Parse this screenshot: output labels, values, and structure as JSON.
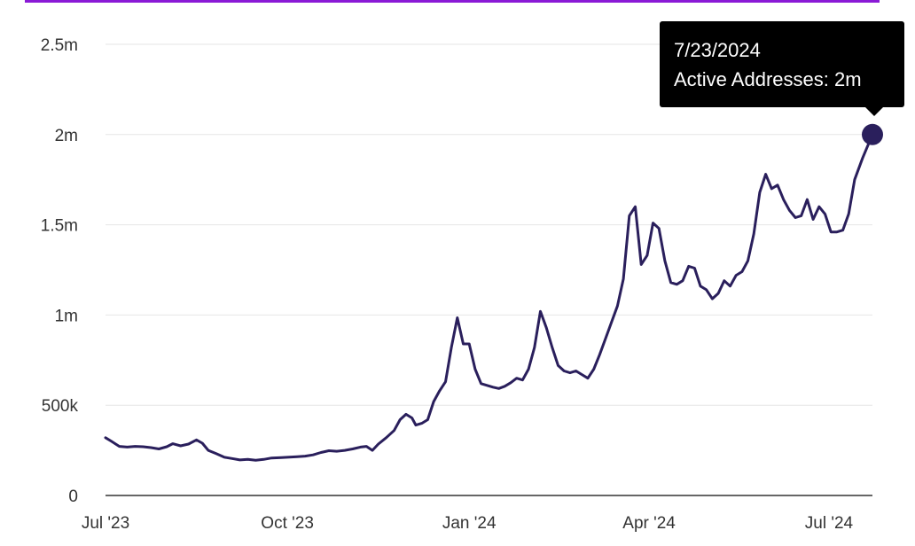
{
  "colors": {
    "accent_border": "#8a1ad6",
    "line": "#2a1f5c",
    "grid": "#e6e6e6",
    "axis": "#333333",
    "tooltip_bg": "#000000",
    "tooltip_text": "#ffffff"
  },
  "tooltip": {
    "date": "7/23/2024",
    "label": "Active Addresses",
    "value": "2m",
    "text": "Active Addresses: 2m"
  },
  "chart_data": {
    "type": "line",
    "title": "",
    "xlabel": "",
    "ylabel": "",
    "ylim": [
      0,
      2500000
    ],
    "grid": true,
    "legend": "none",
    "y_ticks": [
      {
        "value": 0,
        "label": "0"
      },
      {
        "value": 500000,
        "label": "500k"
      },
      {
        "value": 1000000,
        "label": "1m"
      },
      {
        "value": 1500000,
        "label": "1.5m"
      },
      {
        "value": 2000000,
        "label": "2m"
      },
      {
        "value": 2500000,
        "label": "2.5m"
      }
    ],
    "x_ticks": [
      {
        "date": "2023-07-01",
        "label": "Jul '23"
      },
      {
        "date": "2023-10-01",
        "label": "Oct '23"
      },
      {
        "date": "2024-01-01",
        "label": "Jan '24"
      },
      {
        "date": "2024-04-01",
        "label": "Apr '24"
      },
      {
        "date": "2024-07-01",
        "label": "Jul '24"
      }
    ],
    "highlight": {
      "date": "2024-07-23",
      "value": 2000000
    },
    "series": [
      {
        "name": "Active Addresses",
        "points": [
          [
            "2023-07-01",
            320000
          ],
          [
            "2023-07-04",
            300000
          ],
          [
            "2023-07-08",
            272000
          ],
          [
            "2023-07-12",
            268000
          ],
          [
            "2023-07-16",
            272000
          ],
          [
            "2023-07-20",
            270000
          ],
          [
            "2023-07-24",
            265000
          ],
          [
            "2023-07-28",
            258000
          ],
          [
            "2023-08-01",
            270000
          ],
          [
            "2023-08-04",
            287000
          ],
          [
            "2023-08-08",
            275000
          ],
          [
            "2023-08-12",
            285000
          ],
          [
            "2023-08-16",
            308000
          ],
          [
            "2023-08-19",
            290000
          ],
          [
            "2023-08-22",
            250000
          ],
          [
            "2023-08-26",
            232000
          ],
          [
            "2023-08-30",
            212000
          ],
          [
            "2023-09-03",
            205000
          ],
          [
            "2023-09-07",
            197000
          ],
          [
            "2023-09-11",
            200000
          ],
          [
            "2023-09-15",
            195000
          ],
          [
            "2023-09-19",
            200000
          ],
          [
            "2023-09-23",
            208000
          ],
          [
            "2023-09-28",
            210000
          ],
          [
            "2023-10-02",
            212000
          ],
          [
            "2023-10-06",
            215000
          ],
          [
            "2023-10-10",
            218000
          ],
          [
            "2023-10-14",
            225000
          ],
          [
            "2023-10-18",
            238000
          ],
          [
            "2023-10-22",
            248000
          ],
          [
            "2023-10-26",
            245000
          ],
          [
            "2023-10-30",
            250000
          ],
          [
            "2023-11-03",
            258000
          ],
          [
            "2023-11-07",
            268000
          ],
          [
            "2023-11-10",
            272000
          ],
          [
            "2023-11-13",
            250000
          ],
          [
            "2023-11-16",
            285000
          ],
          [
            "2023-11-20",
            320000
          ],
          [
            "2023-11-24",
            360000
          ],
          [
            "2023-11-27",
            420000
          ],
          [
            "2023-11-30",
            450000
          ],
          [
            "2023-12-03",
            430000
          ],
          [
            "2023-12-05",
            390000
          ],
          [
            "2023-12-08",
            400000
          ],
          [
            "2023-12-11",
            420000
          ],
          [
            "2023-12-14",
            520000
          ],
          [
            "2023-12-17",
            580000
          ],
          [
            "2023-12-20",
            630000
          ],
          [
            "2023-12-23",
            820000
          ],
          [
            "2023-12-26",
            985000
          ],
          [
            "2023-12-29",
            840000
          ],
          [
            "2024-01-01",
            840000
          ],
          [
            "2024-01-04",
            700000
          ],
          [
            "2024-01-07",
            620000
          ],
          [
            "2024-01-10",
            610000
          ],
          [
            "2024-01-13",
            600000
          ],
          [
            "2024-01-16",
            593000
          ],
          [
            "2024-01-19",
            605000
          ],
          [
            "2024-01-22",
            625000
          ],
          [
            "2024-01-25",
            650000
          ],
          [
            "2024-01-28",
            640000
          ],
          [
            "2024-01-31",
            700000
          ],
          [
            "2024-02-03",
            820000
          ],
          [
            "2024-02-06",
            1020000
          ],
          [
            "2024-02-09",
            930000
          ],
          [
            "2024-02-12",
            820000
          ],
          [
            "2024-02-15",
            720000
          ],
          [
            "2024-02-18",
            690000
          ],
          [
            "2024-02-21",
            680000
          ],
          [
            "2024-02-24",
            690000
          ],
          [
            "2024-02-27",
            670000
          ],
          [
            "2024-03-01",
            650000
          ],
          [
            "2024-03-04",
            700000
          ],
          [
            "2024-03-07",
            780000
          ],
          [
            "2024-03-10",
            870000
          ],
          [
            "2024-03-13",
            960000
          ],
          [
            "2024-03-16",
            1050000
          ],
          [
            "2024-03-19",
            1200000
          ],
          [
            "2024-03-22",
            1550000
          ],
          [
            "2024-03-25",
            1600000
          ],
          [
            "2024-03-28",
            1280000
          ],
          [
            "2024-03-31",
            1330000
          ],
          [
            "2024-04-03",
            1510000
          ],
          [
            "2024-04-06",
            1480000
          ],
          [
            "2024-04-09",
            1300000
          ],
          [
            "2024-04-12",
            1180000
          ],
          [
            "2024-04-15",
            1170000
          ],
          [
            "2024-04-18",
            1190000
          ],
          [
            "2024-04-21",
            1270000
          ],
          [
            "2024-04-24",
            1260000
          ],
          [
            "2024-04-27",
            1160000
          ],
          [
            "2024-04-30",
            1140000
          ],
          [
            "2024-05-03",
            1090000
          ],
          [
            "2024-05-06",
            1120000
          ],
          [
            "2024-05-09",
            1190000
          ],
          [
            "2024-05-12",
            1160000
          ],
          [
            "2024-05-15",
            1220000
          ],
          [
            "2024-05-18",
            1240000
          ],
          [
            "2024-05-21",
            1300000
          ],
          [
            "2024-05-24",
            1450000
          ],
          [
            "2024-05-27",
            1680000
          ],
          [
            "2024-05-30",
            1780000
          ],
          [
            "2024-06-02",
            1700000
          ],
          [
            "2024-06-05",
            1720000
          ],
          [
            "2024-06-08",
            1640000
          ],
          [
            "2024-06-11",
            1580000
          ],
          [
            "2024-06-14",
            1540000
          ],
          [
            "2024-06-17",
            1550000
          ],
          [
            "2024-06-20",
            1640000
          ],
          [
            "2024-06-23",
            1530000
          ],
          [
            "2024-06-26",
            1600000
          ],
          [
            "2024-06-29",
            1560000
          ],
          [
            "2024-07-02",
            1460000
          ],
          [
            "2024-07-05",
            1460000
          ],
          [
            "2024-07-08",
            1470000
          ],
          [
            "2024-07-11",
            1560000
          ],
          [
            "2024-07-14",
            1750000
          ],
          [
            "2024-07-18",
            1870000
          ],
          [
            "2024-07-23",
            2000000
          ]
        ]
      }
    ]
  }
}
